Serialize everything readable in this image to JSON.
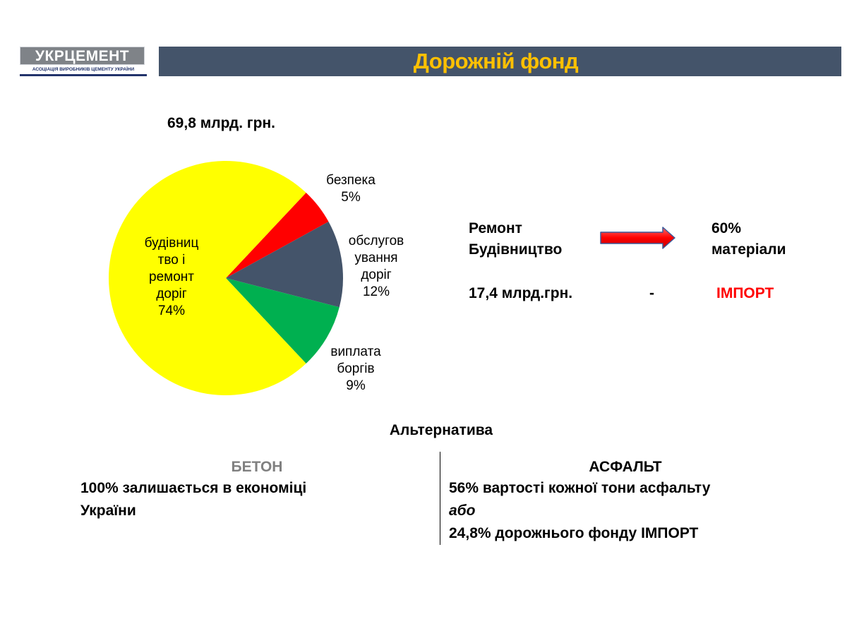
{
  "logo": {
    "name": "УКРЦЕМЕНТ",
    "subtitle": "АСОЦІАЦІЯ ВИРОБНИКІВ ЦЕМЕНТУ УКРАЇНИ"
  },
  "header": {
    "title": "Дорожній фонд"
  },
  "chart_data": {
    "type": "pie",
    "title": "69,8 млрд. грн.",
    "slices": [
      {
        "label": "безпека",
        "value": 5,
        "value_text": "5%",
        "color": "#ff0000"
      },
      {
        "label": "обслуговування доріг",
        "label_lines": [
          "обслугов",
          "ування",
          "доріг"
        ],
        "value": 12,
        "value_text": "12%",
        "color": "#44546a"
      },
      {
        "label": "виплата боргів",
        "label_lines": [
          "виплата",
          "боргів"
        ],
        "value": 9,
        "value_text": "9%",
        "color": "#00b050"
      },
      {
        "label": "будівництво і ремонт доріг",
        "label_lines": [
          "будівниц",
          "тво і",
          "ремонт",
          "доріг"
        ],
        "value": 74,
        "value_text": "74%",
        "color": "#ffff00"
      }
    ]
  },
  "right_panel": {
    "line1_left": "Ремонт",
    "line2_left": "Будівництво",
    "line1_right": "60%",
    "line2_right": "матеріали",
    "amount": "17,4 млрд.грн.",
    "dash": "-",
    "import": "ІМПОРТ"
  },
  "alternative": {
    "title": "Альтернатива",
    "beton": {
      "heading": "БЕТОН",
      "line1": "100% залишається в економіці",
      "line2": "України"
    },
    "asphalt": {
      "heading": "АСФАЛЬТ",
      "line1": "56% вартості кожної тони асфальту",
      "line2": "або",
      "line3": "24,8% дорожнього фонду ІМПОРТ"
    }
  },
  "colors": {
    "header_bg": "#44546a",
    "title": "#ffc000",
    "import": "#ff0000",
    "arrow": "#ff0000"
  }
}
